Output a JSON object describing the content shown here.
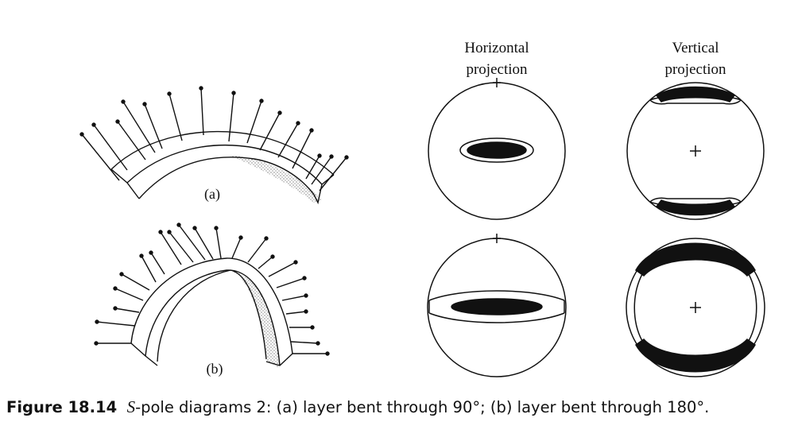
{
  "figure": {
    "column_headers": {
      "horizontal": [
        "Horizontal",
        "projection"
      ],
      "vertical": [
        "Vertical",
        "projection"
      ]
    },
    "panel_labels": {
      "a": "(a)",
      "b": "(b)"
    }
  },
  "caption": {
    "label": "Figure 18.14",
    "s_letter": "S",
    "text": "-pole diagrams 2: (a) layer bent through 90°; (b) layer bent through 180°."
  }
}
